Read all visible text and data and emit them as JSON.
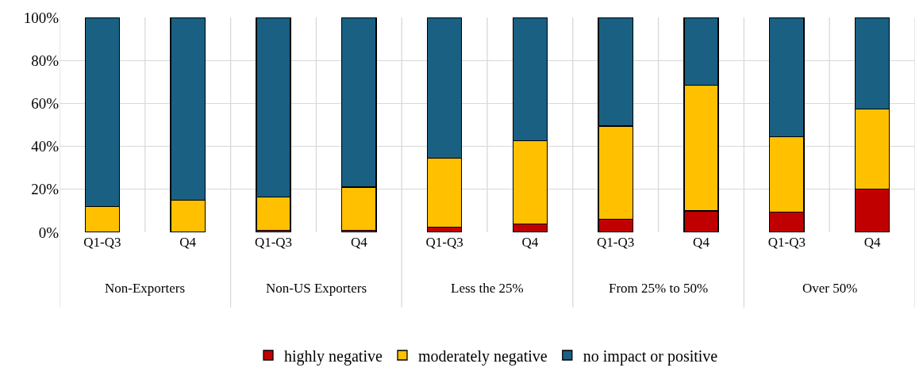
{
  "chart_data": {
    "type": "bar",
    "stacked": true,
    "categories": [
      "Q1-Q3",
      "Q4",
      "Q1-Q3",
      "Q4",
      "Q1-Q3",
      "Q4",
      "Q1-Q3",
      "Q4",
      "Q1-Q3",
      "Q4"
    ],
    "annotations": [
      "Non-Exporters",
      "Non-US Exporters",
      "Less the 25%",
      "From 25% to 50%",
      "Over 50%"
    ],
    "series": [
      {
        "name": "highly negative",
        "color": "#c00000",
        "values": [
          0,
          0,
          1,
          1,
          2.5,
          4,
          6,
          10,
          9.5,
          20
        ]
      },
      {
        "name": "moderately negative",
        "color": "#ffc000",
        "values": [
          12,
          15,
          15.5,
          20,
          32,
          38.5,
          43.5,
          58.5,
          35,
          37.5
        ]
      },
      {
        "name": "no impact or positive",
        "color": "#1a6083",
        "values": [
          88,
          85,
          83.5,
          79,
          65.5,
          57.5,
          50.5,
          31.5,
          55.5,
          42.5
        ]
      }
    ],
    "ylim": [
      0,
      100
    ],
    "yticks": [
      {
        "value": 0,
        "label": "0%"
      },
      {
        "value": 20,
        "label": "20%"
      },
      {
        "value": 40,
        "label": "40%"
      },
      {
        "value": 60,
        "label": "60%"
      },
      {
        "value": 80,
        "label": "80%"
      },
      {
        "value": 100,
        "label": "100%"
      }
    ],
    "grid": true,
    "legend": "bottom"
  }
}
